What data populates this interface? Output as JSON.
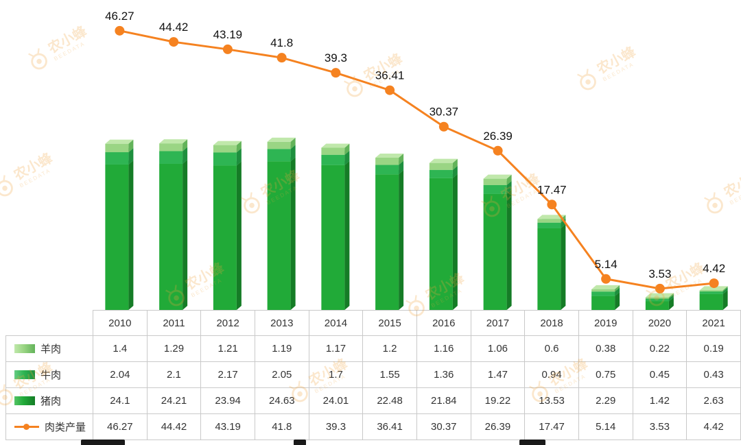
{
  "chart_data": {
    "type": "bar",
    "subtype": "stacked-3d-bars-with-line",
    "title": "",
    "categories": [
      "2010",
      "2011",
      "2012",
      "2013",
      "2014",
      "2015",
      "2016",
      "2017",
      "2018",
      "2019",
      "2020",
      "2021"
    ],
    "series": [
      {
        "name": "羊肉",
        "type": "bar",
        "color": "#9ad584",
        "side": "#63b35a",
        "top": "#c0e8ab",
        "values": [
          1.4,
          1.29,
          1.21,
          1.19,
          1.17,
          1.2,
          1.16,
          1.06,
          0.6,
          0.38,
          0.22,
          0.19
        ]
      },
      {
        "name": "牛肉",
        "type": "bar",
        "color": "#2eb553",
        "side": "#1e8f3e",
        "top": "#66cc82",
        "values": [
          2.04,
          2.1,
          2.17,
          2.05,
          1.7,
          1.55,
          1.36,
          1.47,
          0.94,
          0.75,
          0.45,
          0.43
        ]
      },
      {
        "name": "猪肉",
        "type": "bar",
        "color": "#21aa38",
        "side": "#157c26",
        "top": "#55c465",
        "values": [
          24.1,
          24.21,
          23.94,
          24.63,
          24.01,
          22.48,
          21.84,
          19.22,
          13.53,
          2.29,
          1.42,
          2.63
        ]
      },
      {
        "name": "肉类产量",
        "type": "line",
        "color": "#f58220",
        "values": [
          46.27,
          44.42,
          43.19,
          41.8,
          39.3,
          36.41,
          30.37,
          26.39,
          17.47,
          5.14,
          3.53,
          4.42
        ]
      }
    ],
    "point_labels_series": "肉类产量",
    "ylim": [
      0,
      51.4
    ],
    "grid": false,
    "legend_position": "table-left-column",
    "stack_order_bottom_to_top": [
      "猪肉",
      "牛肉",
      "羊肉"
    ]
  },
  "table": {
    "corner_cell": "",
    "header_is_years": true
  },
  "watermark": {
    "text": "农小蜂",
    "subtext": "BEEDATA"
  },
  "colors": {
    "line": "#f58220",
    "point_label": "#111111",
    "table_border": "#c9c9c9",
    "table_text": "#333333",
    "watermark": "#f0a43c",
    "background": "#ffffff"
  }
}
